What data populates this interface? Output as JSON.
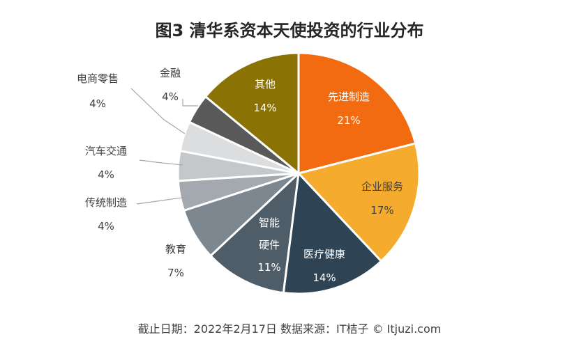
{
  "chart_data": {
    "type": "pie",
    "title": "图3  清华系资本天使投资的行业分布",
    "unit": "%",
    "slices": [
      {
        "label": "先进制造",
        "value": 21,
        "value_label": "21%",
        "color": "#F26B10"
      },
      {
        "label": "企业服务",
        "value": 17,
        "value_label": "17%",
        "color": "#F5AC2E"
      },
      {
        "label": "医疗健康",
        "value": 14,
        "value_label": "14%",
        "color": "#2E4354"
      },
      {
        "label": "智能硬件",
        "value": 11,
        "value_label": "11%",
        "color": "#4F5D69"
      },
      {
        "label": "教育",
        "value": 7,
        "value_label": "7%",
        "color": "#7D8790"
      },
      {
        "label": "传统制造",
        "value": 4,
        "value_label": "4%",
        "color": "#A3A9AE"
      },
      {
        "label": "汽车交通",
        "value": 4,
        "value_label": "4%",
        "color": "#C4C8CB"
      },
      {
        "label": "电商零售",
        "value": 4,
        "value_label": "4%",
        "color": "#DBDDDF"
      },
      {
        "label": "金融",
        "value": 4,
        "value_label": "4%",
        "color": "#595959"
      },
      {
        "label": "其他",
        "value": 14,
        "value_label": "14%",
        "color": "#8A7304"
      }
    ]
  },
  "footer": {
    "text": "截止日期：2022年2月17日    数据来源：IT桔子 © Itjuzi.com"
  },
  "watermark": {
    "text": "IT桔子"
  }
}
